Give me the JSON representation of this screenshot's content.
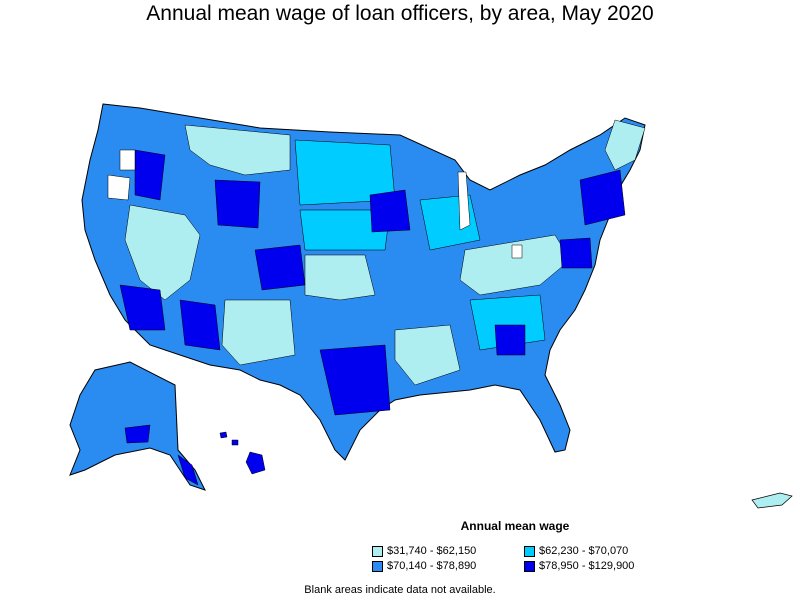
{
  "title": "Annual mean wage of loan officers, by area, May 2020",
  "legend": {
    "title": "Annual mean wage",
    "items": [
      {
        "label": "$31,740 - $62,150",
        "color": "#aeeef0"
      },
      {
        "label": "$62,230 - $70,070",
        "color": "#00ccff"
      },
      {
        "label": "$70,140 - $78,890",
        "color": "#2a8bf0"
      },
      {
        "label": "$78,950 - $129,900",
        "color": "#0000ee"
      }
    ]
  },
  "note": "Blank areas indicate data not available.",
  "colors": {
    "q1": "#aeeef0",
    "q2": "#00ccff",
    "q3": "#2a8bf0",
    "q4": "#0000ee",
    "border": "#000000",
    "blank": "#ffffff"
  }
}
